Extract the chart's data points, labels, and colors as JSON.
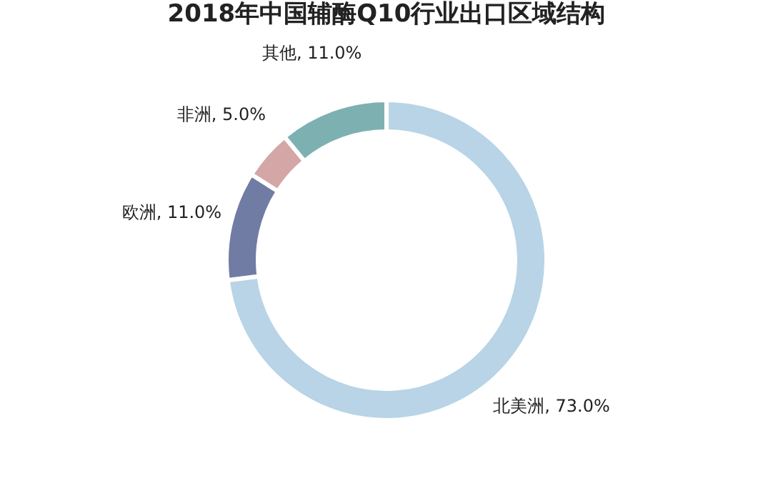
{
  "chart_data": {
    "type": "donut",
    "title": "2018年中国辅酶Q10行业出口区域结构",
    "categories": [
      "北美洲",
      "欧洲",
      "非洲",
      "其他"
    ],
    "values": [
      73.0,
      11.0,
      5.0,
      11.0
    ],
    "value_labels": [
      "73.0%",
      "11.0%",
      "5.0%",
      "11.0%"
    ],
    "colors": [
      "#b8d4e6",
      "#717ca4",
      "#d4a6a6",
      "#7db1b1"
    ],
    "legend": false
  }
}
